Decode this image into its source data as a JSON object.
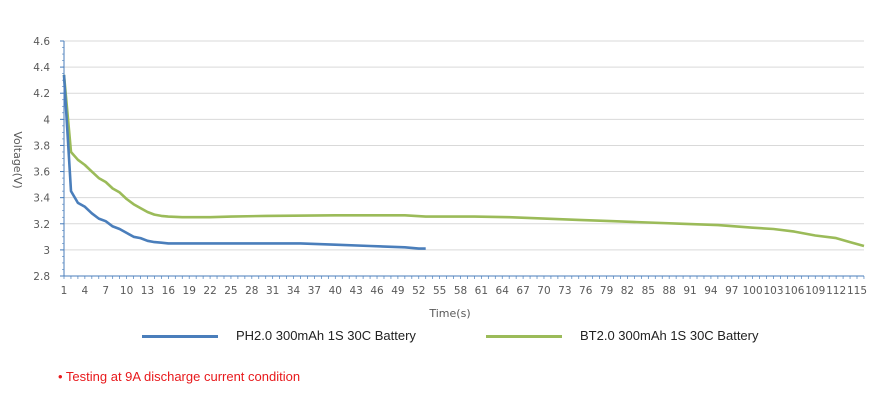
{
  "chart_data": {
    "type": "line",
    "title": "",
    "xlabel": "Time(s)",
    "ylabel": "Voltage(V)",
    "ylim": [
      2.8,
      4.6
    ],
    "yticks": [
      "4.6",
      "4.4",
      "4.2",
      "4",
      "3.8",
      "3.6",
      "3.4",
      "3.2",
      "3",
      "2.8"
    ],
    "xlim": [
      1,
      116
    ],
    "xticks": [
      1,
      4,
      7,
      10,
      13,
      16,
      19,
      22,
      25,
      28,
      31,
      34,
      37,
      40,
      43,
      46,
      49,
      52,
      55,
      58,
      61,
      64,
      67,
      70,
      73,
      76,
      79,
      82,
      85,
      88,
      91,
      94,
      97,
      100,
      103,
      106,
      109,
      112,
      115
    ],
    "grid": true,
    "legend_position": "bottom",
    "series": [
      {
        "name": "PH2.0 300mAh 1S 30C Battery",
        "color": "#4a7ebb",
        "x": [
          1,
          2,
          3,
          4,
          5,
          6,
          7,
          8,
          9,
          10,
          11,
          12,
          13,
          14,
          15,
          16,
          18,
          20,
          25,
          30,
          35,
          40,
          45,
          50,
          52,
          53
        ],
        "values": [
          4.34,
          3.45,
          3.36,
          3.33,
          3.28,
          3.24,
          3.22,
          3.18,
          3.16,
          3.13,
          3.1,
          3.09,
          3.07,
          3.06,
          3.055,
          3.05,
          3.05,
          3.05,
          3.05,
          3.05,
          3.05,
          3.04,
          3.03,
          3.02,
          3.01,
          3.01
        ]
      },
      {
        "name": "BT2.0 300mAh 1S 30C Battery",
        "color": "#9bbb59",
        "x": [
          1,
          2,
          3,
          4,
          5,
          6,
          7,
          8,
          9,
          10,
          11,
          12,
          13,
          14,
          15,
          16,
          18,
          20,
          22,
          25,
          30,
          40,
          50,
          53,
          60,
          65,
          70,
          75,
          80,
          85,
          90,
          95,
          100,
          103,
          106,
          109,
          112,
          114,
          116
        ],
        "values": [
          4.34,
          3.75,
          3.69,
          3.65,
          3.6,
          3.55,
          3.52,
          3.47,
          3.44,
          3.39,
          3.35,
          3.32,
          3.29,
          3.27,
          3.26,
          3.255,
          3.25,
          3.25,
          3.25,
          3.255,
          3.26,
          3.265,
          3.265,
          3.255,
          3.255,
          3.25,
          3.24,
          3.23,
          3.22,
          3.21,
          3.2,
          3.19,
          3.17,
          3.16,
          3.14,
          3.11,
          3.09,
          3.06,
          3.03
        ]
      }
    ]
  },
  "legend": {
    "items": [
      {
        "label": "PH2.0 300mAh 1S 30C Battery",
        "color": "#4a7ebb"
      },
      {
        "label": "BT2.0 300mAh 1S 30C Battery",
        "color": "#9bbb59"
      }
    ]
  },
  "note": "• Testing at 9A discharge current condition"
}
